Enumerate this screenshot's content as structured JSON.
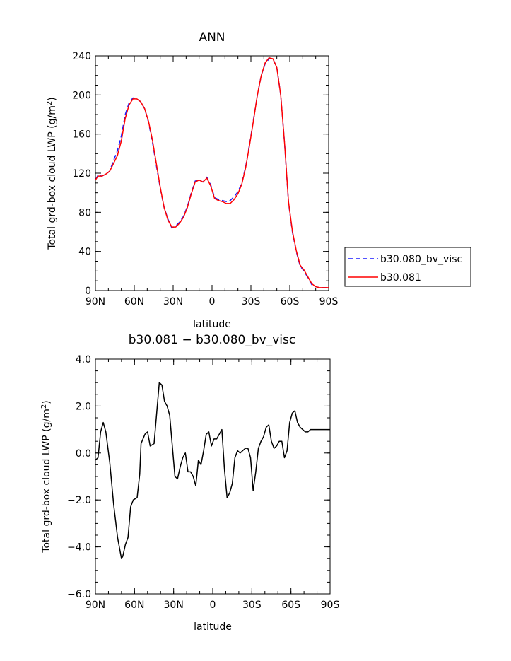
{
  "chart_data": [
    {
      "type": "line",
      "title": "ANN",
      "xlabel": "latitude",
      "ylabel_main": "Total grd-box cloud LWP (g/m",
      "ylabel_sup": "2",
      "ylabel_tail": ")",
      "xticks": [
        90,
        60,
        30,
        0,
        -30,
        -60,
        -90
      ],
      "xtick_labels": [
        "90N",
        "60N",
        "30N",
        "0",
        "30S",
        "60S",
        "90S"
      ],
      "xlim": [
        90,
        -90
      ],
      "ylim": [
        0,
        240
      ],
      "yticks": [
        0,
        40,
        80,
        120,
        160,
        200,
        240
      ],
      "ytick_labels": [
        "0",
        "40",
        "80",
        "120",
        "160",
        "200",
        "240"
      ],
      "legend_position": "right",
      "series": [
        {
          "name": "b30.080_bv_visc",
          "color": "#1a1aff",
          "dash": "dashed",
          "x": [
            90,
            88,
            85,
            82,
            79,
            76,
            73,
            70,
            67,
            64,
            61,
            58,
            55,
            52,
            49,
            46,
            43,
            40,
            37,
            34,
            31,
            28,
            25,
            22,
            19,
            16,
            13,
            10,
            7,
            4,
            1,
            -2,
            -5,
            -8,
            -11,
            -14,
            -17,
            -20,
            -23,
            -26,
            -29,
            -32,
            -35,
            -38,
            -41,
            -44,
            -47,
            -50,
            -53,
            -56,
            -59,
            -62,
            -65,
            -68,
            -71,
            -74,
            -77,
            -80,
            -83,
            -86,
            -88,
            -90
          ],
          "y": [
            113,
            118,
            117,
            119,
            122,
            133,
            143,
            158,
            180,
            192,
            197,
            196,
            193,
            186,
            172,
            152,
            128,
            105,
            85,
            73,
            64,
            66,
            70,
            76,
            86,
            100,
            112,
            113,
            111,
            116,
            108,
            95,
            93,
            92,
            91,
            92,
            96,
            101,
            110,
            127,
            150,
            175,
            200,
            220,
            232,
            237,
            237,
            228,
            200,
            150,
            90,
            60,
            40,
            25,
            20,
            13,
            6,
            4,
            3,
            3,
            3,
            3
          ]
        },
        {
          "name": "b30.081",
          "color": "#ff0000",
          "dash": "solid",
          "x": [
            90,
            88,
            85,
            82,
            79,
            76,
            73,
            70,
            67,
            64,
            61,
            58,
            55,
            52,
            49,
            46,
            43,
            40,
            37,
            34,
            31,
            28,
            25,
            22,
            19,
            16,
            13,
            10,
            7,
            4,
            1,
            -2,
            -5,
            -8,
            -11,
            -14,
            -17,
            -20,
            -23,
            -26,
            -29,
            -32,
            -35,
            -38,
            -41,
            -44,
            -47,
            -50,
            -53,
            -56,
            -59,
            -62,
            -65,
            -68,
            -71,
            -74,
            -77,
            -80,
            -83,
            -86,
            -88,
            -90
          ],
          "y": [
            113,
            117,
            117,
            119,
            122,
            130,
            138,
            153,
            176,
            190,
            196,
            196,
            193,
            186,
            173,
            154,
            130,
            106,
            85,
            72,
            65,
            65,
            69,
            75,
            85,
            99,
            111,
            113,
            111,
            115,
            107,
            94,
            92,
            91,
            89,
            89,
            93,
            99,
            109,
            126,
            149,
            174,
            200,
            220,
            233,
            238,
            237,
            228,
            200,
            150,
            91,
            61,
            41,
            26,
            21,
            14,
            7,
            4,
            3,
            3,
            3,
            3
          ]
        }
      ]
    },
    {
      "type": "line",
      "title": "b30.081 − b30.080_bv_visc",
      "xlabel": "latitude",
      "ylabel_main": "Total grd-box cloud LWP (g/m",
      "ylabel_sup": "2",
      "ylabel_tail": ")",
      "xticks": [
        90,
        60,
        30,
        0,
        -30,
        -60,
        -90
      ],
      "xtick_labels": [
        "90N",
        "60N",
        "30N",
        "0",
        "30S",
        "60S",
        "90S"
      ],
      "xlim": [
        90,
        -90
      ],
      "ylim": [
        -6,
        4
      ],
      "yticks": [
        -6,
        -4,
        -2,
        0,
        2,
        4
      ],
      "ytick_labels": [
        "−6.0",
        "−4.0",
        "−2.0",
        "0.0",
        "2.0",
        "4.0"
      ],
      "series": [
        {
          "name": "",
          "color": "#000000",
          "dash": "solid",
          "x": [
            90,
            88,
            86,
            84,
            82,
            79,
            76,
            73,
            70,
            69,
            67,
            65,
            63,
            61,
            58,
            56,
            55,
            52,
            50,
            48,
            45,
            43,
            41,
            39,
            37,
            35,
            33,
            31,
            29,
            27,
            25,
            23,
            21,
            19,
            17,
            15,
            13,
            11,
            9,
            7,
            5,
            3,
            1,
            -1,
            -3,
            -5,
            -7,
            -9,
            -11,
            -13,
            -15,
            -17,
            -19,
            -21,
            -23,
            -25,
            -27,
            -29,
            -31,
            -33,
            -35,
            -37,
            -39,
            -41,
            -43,
            -45,
            -47,
            -49,
            -51,
            -53,
            -55,
            -57,
            -59,
            -61,
            -63,
            -65,
            -67,
            -69,
            -71,
            -73,
            -75,
            -77,
            -79,
            -81,
            -83,
            -85,
            -87,
            -90
          ],
          "y": [
            -0.3,
            -0.2,
            0.9,
            1.3,
            0.9,
            -0.4,
            -2.2,
            -3.6,
            -4.5,
            -4.4,
            -3.9,
            -3.6,
            -2.3,
            -2.0,
            -1.9,
            -0.9,
            0.4,
            0.8,
            0.9,
            0.3,
            0.4,
            1.7,
            3.0,
            2.9,
            2.2,
            2.0,
            1.6,
            0.3,
            -1.0,
            -1.1,
            -0.6,
            -0.2,
            0.0,
            -0.8,
            -0.8,
            -1.0,
            -1.4,
            -0.3,
            -0.5,
            0.1,
            0.8,
            0.9,
            0.3,
            0.6,
            0.6,
            0.8,
            1.0,
            -0.7,
            -1.9,
            -1.7,
            -1.3,
            -0.2,
            0.1,
            0.0,
            0.1,
            0.2,
            0.2,
            -0.2,
            -1.6,
            -0.8,
            0.2,
            0.5,
            0.7,
            1.1,
            1.2,
            0.5,
            0.2,
            0.3,
            0.5,
            0.5,
            -0.2,
            0.1,
            1.3,
            1.7,
            1.8,
            1.3,
            1.1,
            1.0,
            0.9,
            0.9,
            1.0,
            1.0,
            1.0,
            1.0,
            1.0,
            1.0,
            1.0,
            1.0
          ]
        }
      ]
    }
  ]
}
